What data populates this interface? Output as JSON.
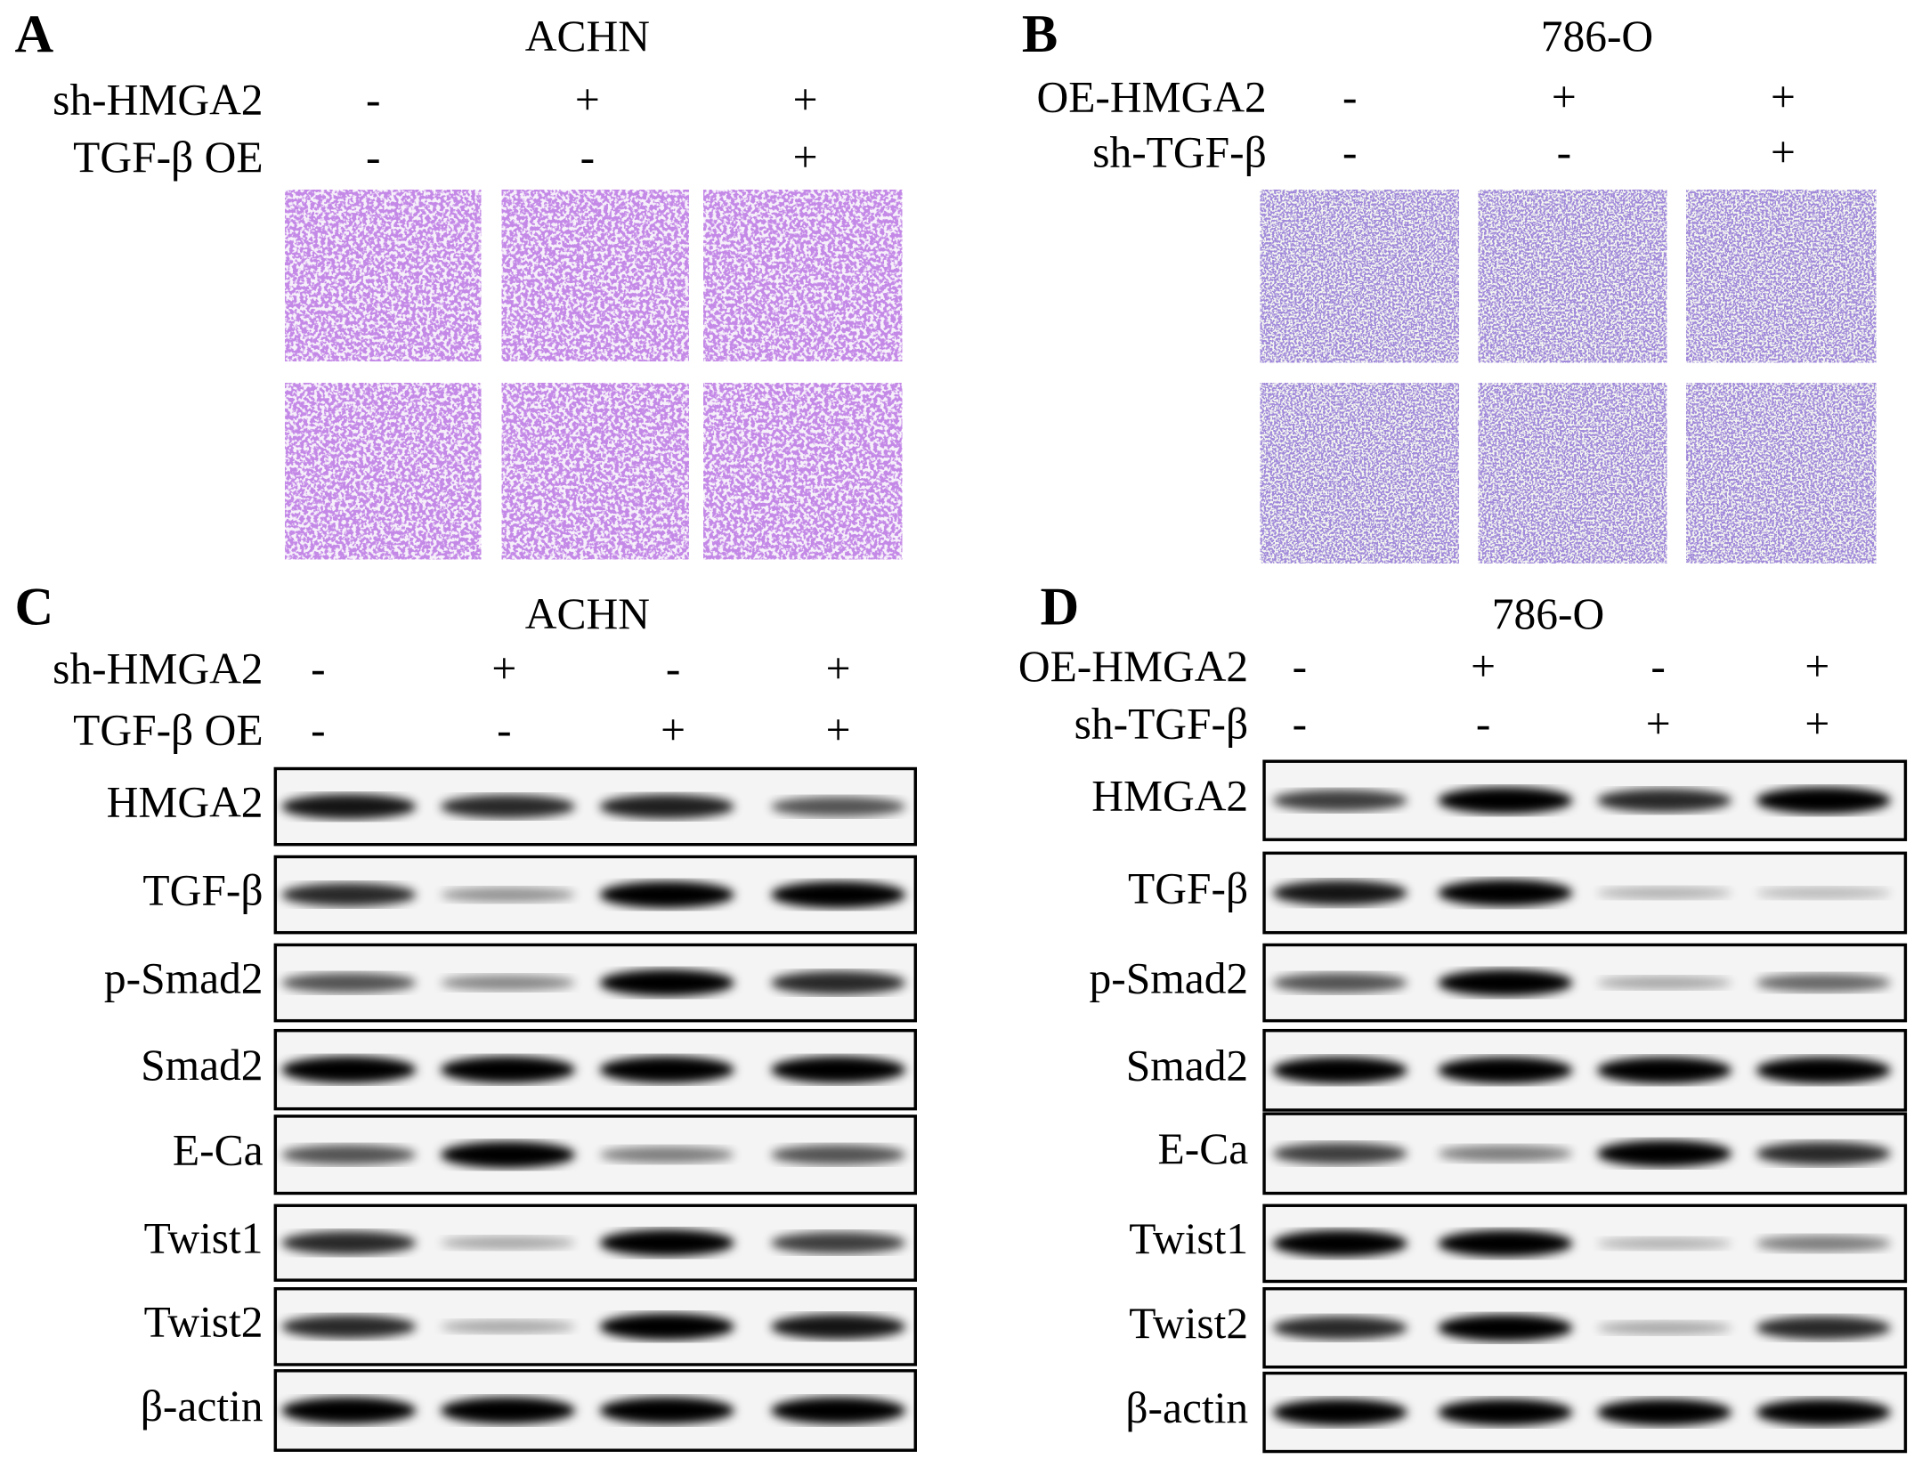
{
  "panels": [
    {
      "label": "A",
      "title": "ACHN",
      "conditions": [
        {
          "name": "sh-HMGA2",
          "signs": [
            "-",
            "+",
            "+"
          ]
        },
        {
          "name": "TGF-β OE",
          "signs": [
            "-",
            "-",
            "+"
          ]
        }
      ]
    },
    {
      "label": "B",
      "title": "786-O",
      "conditions": [
        {
          "name": "OE-HMGA2",
          "signs": [
            "-",
            "+",
            "+"
          ]
        },
        {
          "name": "sh-TGF-β",
          "signs": [
            "-",
            "-",
            "+"
          ]
        }
      ]
    },
    {
      "label": "C",
      "title": "ACHN",
      "conditions": [
        {
          "name": "sh-HMGA2",
          "signs": [
            "-",
            "+",
            "-",
            "+"
          ]
        },
        {
          "name": "TGF-β OE",
          "signs": [
            "-",
            "-",
            "+",
            "+"
          ]
        }
      ],
      "blots": [
        "HMGA2",
        "TGF-β",
        "p-Smad2",
        "Smad2",
        "E-Ca",
        "Twist1",
        "Twist2",
        "β-actin"
      ]
    },
    {
      "label": "D",
      "title": "786-O",
      "conditions": [
        {
          "name": "OE-HMGA2",
          "signs": [
            "-",
            "+",
            "-",
            "+"
          ]
        },
        {
          "name": "sh-TGF-β",
          "signs": [
            "-",
            "-",
            "+",
            "+"
          ]
        }
      ],
      "blots": [
        "HMGA2",
        "TGF-β",
        "p-Smad2",
        "Smad2",
        "E-Ca",
        "Twist1",
        "Twist2",
        "β-actin"
      ]
    }
  ]
}
